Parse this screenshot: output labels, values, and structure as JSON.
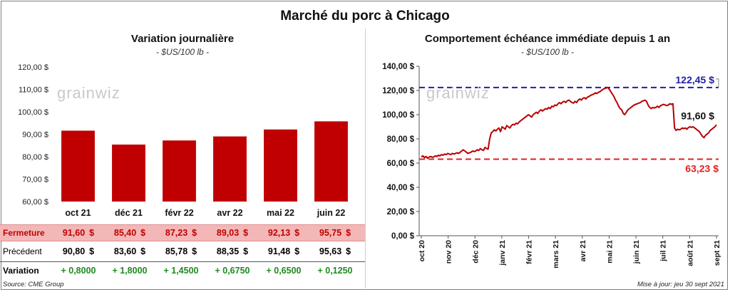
{
  "main_title": "Marché du porc à Chicago",
  "left": {
    "title": "Variation journalière",
    "unit": "- $US/100 lb -",
    "watermark": "grainwiz",
    "rows": {
      "fermeture_label": "Fermeture",
      "precedent_label": "Précédent",
      "variation_label": "Variation",
      "fermeture": [
        "91,60",
        "85,40",
        "87,23",
        "89,03",
        "92,13",
        "95,75"
      ],
      "precedent": [
        "90,80",
        "83,60",
        "85,78",
        "88,35",
        "91,48",
        "95,63"
      ],
      "variation": [
        "+ 0,8000",
        "+ 1,8000",
        "+ 1,4500",
        "+ 0,6750",
        "+ 0,6500",
        "+ 0,1250"
      ],
      "dollar": "$"
    }
  },
  "right": {
    "title": "Comportement  échéance immédiate depuis 1 an",
    "unit": "- $US/100 lb -",
    "watermark": "grainwiz",
    "label_high": "122,45 $",
    "label_low": "63,23 $",
    "label_last": "91,60 $"
  },
  "footer": {
    "source": "Source: CME Group",
    "updated": "Mise à jour: jeu 30 sept 2021"
  },
  "colors": {
    "bar": "#c00000",
    "high_line": "#1f1fa8",
    "low_line": "#e02020",
    "line": "#b80000",
    "green": "#1f8a1f"
  },
  "chart_data": [
    {
      "type": "bar",
      "title": "Variation journalière",
      "subtitle": "- $US/100 lb -",
      "categories": [
        "oct 21",
        "déc 21",
        "févr 22",
        "avr 22",
        "mai 22",
        "juin 22"
      ],
      "values": [
        91.6,
        85.4,
        87.23,
        89.03,
        92.13,
        95.75
      ],
      "ylim": [
        60,
        120
      ],
      "yticks": [
        "60,00 $",
        "70,00 $",
        "80,00 $",
        "90,00 $",
        "100,00 $",
        "110,00 $",
        "120,00 $"
      ],
      "ytick_values": [
        60,
        70,
        80,
        90,
        100,
        110,
        120
      ]
    },
    {
      "type": "line",
      "title": "Comportement  échéance immédiate depuis 1 an",
      "subtitle": "- $US/100 lb -",
      "ylim": [
        0,
        140
      ],
      "yticks": [
        "0,00 $",
        "20,00 $",
        "40,00 $",
        "60,00 $",
        "80,00 $",
        "100,00 $",
        "120,00 $",
        "140,00 $"
      ],
      "ytick_values": [
        0,
        20,
        40,
        60,
        80,
        100,
        120,
        140
      ],
      "xticks": [
        "oct 20",
        "nov 20",
        "déc 20",
        "janv 21",
        "févr 21",
        "mars 21",
        "avr 21",
        "mai 21",
        "juin 21",
        "juil 21",
        "août 21",
        "sept 21"
      ],
      "reference_lines": [
        {
          "value": 122.45,
          "label": "122,45 $"
        },
        {
          "value": 63.23,
          "label": "63,23 $"
        }
      ],
      "last_value": 91.6,
      "series": [
        {
          "values": [
            65,
            66,
            64.5,
            65.5,
            64,
            65,
            65.5,
            64.8,
            65,
            66,
            65.5,
            66.5,
            66,
            67,
            66.5,
            67.5,
            67,
            68,
            67.5,
            67,
            68,
            67.5,
            68,
            68.5,
            68,
            69,
            70,
            71,
            70,
            69,
            68,
            68.5,
            69,
            70,
            69.5,
            70,
            71,
            70.5,
            72,
            71,
            70.5,
            73,
            72,
            71.5,
            80,
            85,
            86,
            87.5,
            86.5,
            88,
            89,
            86,
            90,
            89,
            88,
            91,
            90,
            89,
            91,
            92,
            91.5,
            93,
            92.5,
            94,
            95,
            96,
            97,
            98,
            99,
            100,
            99,
            98,
            100,
            101,
            102,
            101,
            103,
            104,
            103,
            104,
            105,
            104.5,
            106,
            105,
            107,
            106.5,
            108,
            107.5,
            109,
            110,
            109,
            110.5,
            111,
            110,
            111.5,
            112,
            111,
            110,
            109.5,
            111,
            110,
            112,
            113,
            112,
            113.5,
            114,
            113,
            114.5,
            115,
            116,
            116.5,
            117,
            118,
            117.5,
            118.5,
            119,
            120,
            121,
            121.5,
            122,
            122.45,
            121,
            119,
            117,
            115,
            112,
            110,
            107,
            105,
            104,
            101,
            100,
            102,
            104,
            105,
            106,
            107,
            108,
            108.5,
            109,
            109.5,
            110,
            111,
            111.5,
            112,
            111,
            108,
            106,
            105,
            106,
            105.5,
            106,
            107,
            106,
            107.5,
            108,
            108.5,
            108,
            107.5,
            108,
            109,
            108.5,
            109,
            89,
            87,
            88,
            87.5,
            88,
            89,
            88.5,
            89,
            88,
            89.5,
            90,
            89.5,
            90,
            89,
            88,
            87,
            86,
            84,
            82,
            81,
            83,
            84,
            85,
            87,
            88,
            89,
            90,
            91.6
          ]
        }
      ]
    }
  ]
}
